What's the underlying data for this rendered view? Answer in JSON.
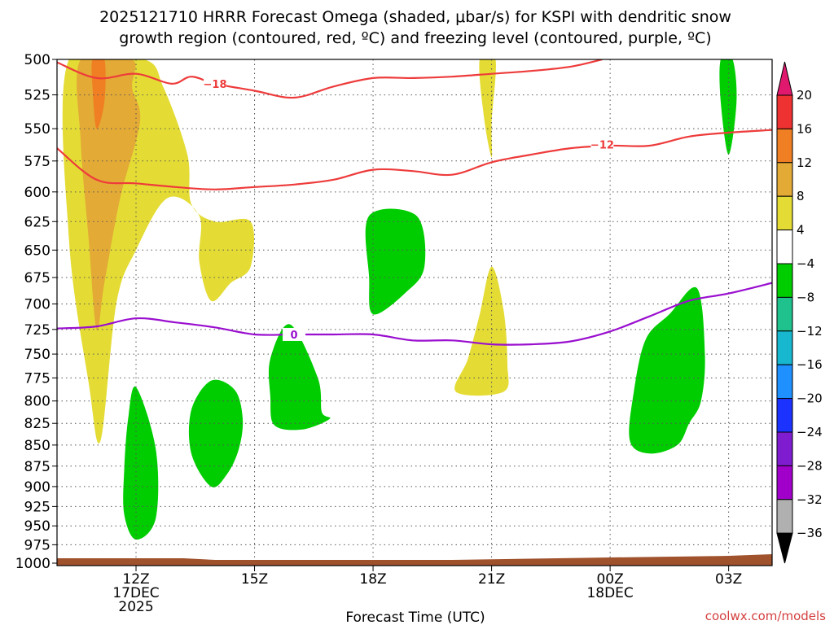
{
  "chart_data": {
    "type": "heatmap",
    "title_line1": "2025121710 HRRR Forecast Omega (shaded, μbar/s) for KSPI with dendritic snow",
    "title_line2": "growth region (contoured, red, ºC) and freezing level (contoured, purple, ºC)",
    "xlabel": "Forecast Time (UTC)",
    "credit": "coolwx.com/models",
    "x_range_hours": [
      10,
      28.1
    ],
    "x_ticks": [
      {
        "h": 12,
        "lines": [
          "12Z",
          "17DEC",
          "2025"
        ]
      },
      {
        "h": 15,
        "lines": [
          "15Z"
        ]
      },
      {
        "h": 18,
        "lines": [
          "18Z"
        ]
      },
      {
        "h": 21,
        "lines": [
          "21Z"
        ]
      },
      {
        "h": 24,
        "lines": [
          "00Z",
          "18DEC"
        ]
      },
      {
        "h": 27,
        "lines": [
          "03Z"
        ]
      }
    ],
    "y_range_mb": [
      1000,
      500
    ],
    "y_ticks": [
      500,
      525,
      550,
      575,
      600,
      625,
      650,
      675,
      700,
      725,
      750,
      775,
      800,
      825,
      850,
      875,
      900,
      925,
      950,
      975,
      1000
    ],
    "colorbar": {
      "labels": [
        "20",
        "16",
        "12",
        "8",
        "4",
        "−4",
        "−8",
        "−12",
        "−16",
        "−20",
        "−24",
        "−28",
        "−32",
        "−36"
      ],
      "colors": [
        "#ee3232",
        "#ef7f22",
        "#e3aa36",
        "#e4dc34",
        "#ffffff",
        "#00cd00",
        "#1fc18c",
        "#17b7cf",
        "#1e90ff",
        "#1c33ff",
        "#7f1ccf",
        "#a000c9",
        "#b0b0b0"
      ],
      "top_arrow_color": "#e0196f",
      "bottom_arrow_color": "#000000"
    },
    "omega_regions": [
      {
        "level": "4 to 8",
        "color": "#e4dc34",
        "points": [
          [
            10.3,
            500
          ],
          [
            12.2,
            500
          ],
          [
            12.7,
            520
          ],
          [
            13.3,
            570
          ],
          [
            13.4,
            610
          ],
          [
            14.0,
            625
          ],
          [
            14.9,
            625
          ],
          [
            14.9,
            665
          ],
          [
            14.4,
            680
          ],
          [
            13.9,
            697
          ],
          [
            13.6,
            660
          ],
          [
            13.6,
            620
          ],
          [
            12.8,
            605
          ],
          [
            12.0,
            650
          ],
          [
            11.5,
            700
          ],
          [
            11.1,
            845
          ],
          [
            10.8,
            780
          ],
          [
            10.3,
            640
          ]
        ]
      },
      {
        "level": "8 to 12",
        "color": "#e3aa36",
        "points": [
          [
            10.6,
            500
          ],
          [
            11.9,
            500
          ],
          [
            11.9,
            520
          ],
          [
            12.1,
            545
          ],
          [
            11.6,
            605
          ],
          [
            11.2,
            680
          ],
          [
            11.0,
            725
          ],
          [
            10.8,
            640
          ],
          [
            10.6,
            560
          ]
        ]
      },
      {
        "level": "12 to 16",
        "color": "#ef7f22",
        "points": [
          [
            10.9,
            500
          ],
          [
            11.2,
            500
          ],
          [
            11.2,
            530
          ],
          [
            11.0,
            550
          ],
          [
            10.9,
            520
          ]
        ]
      },
      {
        "level": "4 to 8",
        "color": "#e4dc34",
        "points": [
          [
            20.7,
            500
          ],
          [
            21.1,
            500
          ],
          [
            21.0,
            545
          ],
          [
            21.0,
            572
          ],
          [
            20.8,
            540
          ]
        ]
      },
      {
        "level": "4 to 8",
        "color": "#e4dc34",
        "points": [
          [
            21.0,
            665
          ],
          [
            21.3,
            705
          ],
          [
            21.4,
            760
          ],
          [
            21.3,
            790
          ],
          [
            20.1,
            790
          ],
          [
            20.4,
            755
          ],
          [
            20.7,
            710
          ]
        ]
      },
      {
        "level": "-4 to -8",
        "color": "#00cd00",
        "points": [
          [
            12.0,
            785
          ],
          [
            12.5,
            855
          ],
          [
            12.5,
            940
          ],
          [
            12.0,
            968
          ],
          [
            11.7,
            935
          ],
          [
            11.7,
            880
          ],
          [
            11.8,
            820
          ]
        ]
      },
      {
        "level": "-4 to -8",
        "color": "#00cd00",
        "points": [
          [
            13.9,
            778
          ],
          [
            14.5,
            788
          ],
          [
            14.7,
            820
          ],
          [
            14.6,
            855
          ],
          [
            14.3,
            885
          ],
          [
            13.9,
            900
          ],
          [
            13.4,
            860
          ],
          [
            13.4,
            810
          ]
        ]
      },
      {
        "level": "-4 to -8",
        "color": "#00cd00",
        "points": [
          [
            15.9,
            720
          ],
          [
            16.6,
            775
          ],
          [
            16.7,
            812
          ],
          [
            16.9,
            820
          ],
          [
            16.2,
            832
          ],
          [
            15.5,
            827
          ],
          [
            15.4,
            795
          ],
          [
            15.4,
            755
          ]
        ]
      },
      {
        "level": "-4 to -8",
        "color": "#00cd00",
        "points": [
          [
            17.9,
            620
          ],
          [
            19.1,
            620
          ],
          [
            19.3,
            665
          ],
          [
            18.8,
            690
          ],
          [
            18.0,
            710
          ],
          [
            17.9,
            675
          ]
        ]
      },
      {
        "level": "-4 to -8",
        "color": "#00cd00",
        "points": [
          [
            26.2,
            685
          ],
          [
            26.4,
            750
          ],
          [
            26.3,
            800
          ],
          [
            26.0,
            825
          ],
          [
            25.7,
            850
          ],
          [
            25.0,
            860
          ],
          [
            24.5,
            845
          ],
          [
            24.6,
            790
          ],
          [
            24.9,
            735
          ],
          [
            25.5,
            710
          ]
        ]
      },
      {
        "level": "-4 to -8",
        "color": "#00cd00",
        "points": [
          [
            26.8,
            500
          ],
          [
            27.1,
            500
          ],
          [
            27.2,
            530
          ],
          [
            27.0,
            570
          ],
          [
            26.8,
            530
          ]
        ]
      }
    ],
    "isotherms": [
      {
        "label": "−18",
        "color": "#ee3b3b",
        "label_at": [
          14.0,
          517
        ],
        "points": [
          [
            10,
            502
          ],
          [
            11.0,
            513
          ],
          [
            12.0,
            510
          ],
          [
            12.9,
            517
          ],
          [
            13.4,
            512
          ],
          [
            14.0,
            517
          ],
          [
            15.0,
            522
          ],
          [
            16.0,
            527
          ],
          [
            17.0,
            519
          ],
          [
            18.0,
            513
          ],
          [
            19.0,
            513
          ],
          [
            20.0,
            512
          ],
          [
            21.0,
            510
          ],
          [
            22.0,
            508
          ],
          [
            23.0,
            505
          ],
          [
            23.8,
            500
          ]
        ]
      },
      {
        "label": "−12",
        "color": "#ee3b3b",
        "label_at": [
          23.8,
          562
        ],
        "points": [
          [
            10,
            565
          ],
          [
            11.0,
            590
          ],
          [
            12.0,
            593
          ],
          [
            13.0,
            596
          ],
          [
            14.0,
            598
          ],
          [
            15.0,
            596
          ],
          [
            16.0,
            594
          ],
          [
            17.0,
            590
          ],
          [
            18.0,
            582
          ],
          [
            19.0,
            583
          ],
          [
            20.0,
            586
          ],
          [
            21.0,
            576
          ],
          [
            22.0,
            570
          ],
          [
            23.0,
            565
          ],
          [
            24.0,
            563
          ],
          [
            25.0,
            563
          ],
          [
            26.0,
            556
          ],
          [
            27.0,
            553
          ],
          [
            28.1,
            551
          ]
        ]
      },
      {
        "label": "0",
        "color": "#9a0fcf",
        "label_at": [
          16.0,
          730
        ],
        "points": [
          [
            10,
            724
          ],
          [
            11.0,
            722
          ],
          [
            12.0,
            714
          ],
          [
            13.0,
            718
          ],
          [
            14.0,
            723
          ],
          [
            15.0,
            730
          ],
          [
            16.0,
            730
          ],
          [
            17.0,
            730
          ],
          [
            18.0,
            730
          ],
          [
            19.0,
            736
          ],
          [
            20.0,
            736
          ],
          [
            21.0,
            740
          ],
          [
            22.0,
            740
          ],
          [
            23.0,
            737
          ],
          [
            24.0,
            727
          ],
          [
            25.0,
            712
          ],
          [
            26.0,
            697
          ],
          [
            27.0,
            690
          ],
          [
            28.1,
            680
          ]
        ]
      }
    ],
    "terrain_color": "#a0522d"
  }
}
